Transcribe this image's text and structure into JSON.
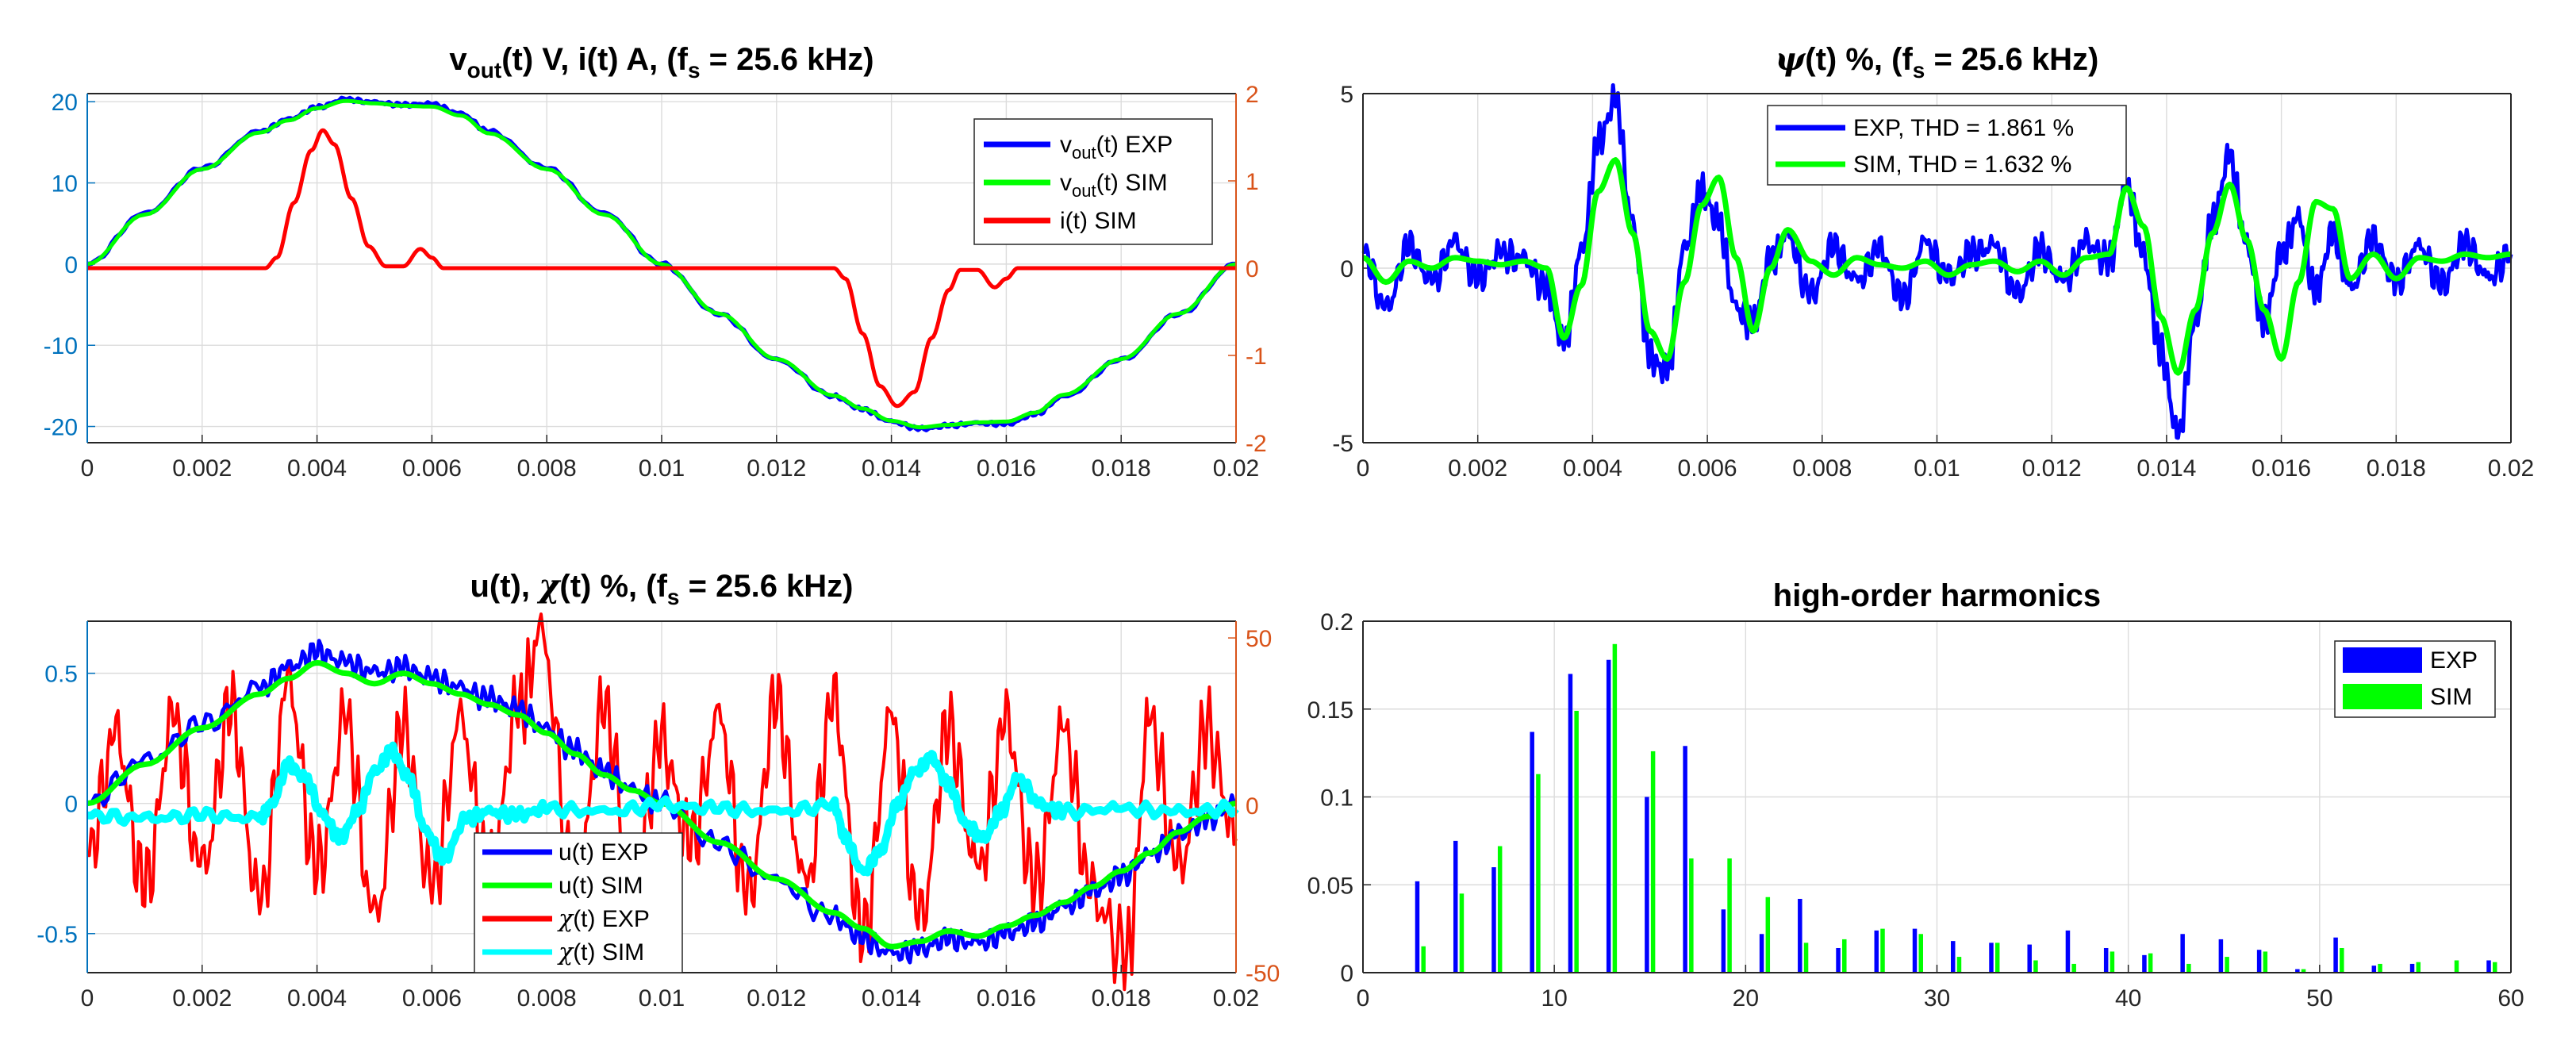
{
  "colors": {
    "exp": "#0000ff",
    "sim": "#00ff00",
    "red": "#ff0000",
    "cyan": "#00ffff",
    "axis_left": "#0072bd",
    "axis_right": "#d95319"
  },
  "chart_data": [
    {
      "id": "vout",
      "type": "line",
      "title": "v",
      "title_sub": "out",
      "title_rest": "(t) V, i(t) A, (f",
      "title_sub2": "s",
      "title_end": " = 25.6 kHz)",
      "xlim": [
        0,
        0.02
      ],
      "ylim": [
        -22,
        21
      ],
      "y2lim": [
        -2,
        2
      ],
      "xticks": [
        "0",
        "0.002",
        "0.004",
        "0.006",
        "0.008",
        "0.01",
        "0.012",
        "0.014",
        "0.016",
        "0.018",
        "0.02"
      ],
      "yticks": [
        "-20",
        "-10",
        "0",
        "10",
        "20"
      ],
      "y2ticks": [
        "-2",
        "-1",
        "0",
        "1",
        "2"
      ],
      "legend_position": "top-right",
      "legend": [
        {
          "pre": "v",
          "sub": "out",
          "post": "(t) EXP"
        },
        {
          "pre": "v",
          "sub": "out",
          "post": "(t) SIM"
        },
        {
          "pre": "i(t)  SIM",
          "sub": "",
          "post": ""
        }
      ],
      "series": [
        {
          "name": "vout(t) EXP",
          "axis": "left",
          "x": [
            0,
            0.001,
            0.002,
            0.003,
            0.0035,
            0.004,
            0.0045,
            0.005,
            0.0055,
            0.006,
            0.0065,
            0.007,
            0.008,
            0.009,
            0.01,
            0.011,
            0.012,
            0.013,
            0.0135,
            0.014,
            0.0145,
            0.015,
            0.0155,
            0.016,
            0.0165,
            0.017,
            0.018,
            0.019,
            0.02
          ],
          "values": [
            0,
            6.2,
            11.8,
            16.3,
            17.8,
            19.3,
            20.3,
            19.9,
            19.6,
            19.7,
            18.5,
            16.3,
            11.8,
            6.2,
            0,
            -6.2,
            -11.8,
            -16.3,
            -17.9,
            -19.4,
            -20.3,
            -19.9,
            -19.6,
            -19.7,
            -18.5,
            -16.3,
            -11.8,
            -6.2,
            0
          ]
        },
        {
          "name": "vout(t) SIM",
          "axis": "left",
          "x": [
            0,
            0.001,
            0.002,
            0.003,
            0.0035,
            0.004,
            0.0045,
            0.005,
            0.0055,
            0.006,
            0.0065,
            0.007,
            0.008,
            0.009,
            0.01,
            0.011,
            0.012,
            0.013,
            0.0135,
            0.014,
            0.0145,
            0.015,
            0.0155,
            0.016,
            0.0165,
            0.017,
            0.018,
            0.019,
            0.02
          ],
          "values": [
            0,
            6.1,
            11.7,
            16.2,
            17.7,
            19.2,
            20.1,
            19.8,
            19.5,
            19.4,
            18.3,
            16.1,
            11.7,
            6.1,
            0,
            -6.1,
            -11.7,
            -16.2,
            -17.8,
            -19.3,
            -20.1,
            -19.8,
            -19.5,
            -19.4,
            -18.3,
            -16.1,
            -11.7,
            -6.1,
            0
          ]
        },
        {
          "name": "i(t)  SIM",
          "axis": "right",
          "x": [
            0,
            0.0031,
            0.0033,
            0.0036,
            0.0039,
            0.0041,
            0.0043,
            0.0046,
            0.0049,
            0.0052,
            0.0055,
            0.0058,
            0.006,
            0.0062,
            0.013,
            0.0132,
            0.0135,
            0.0138,
            0.0141,
            0.0144,
            0.0147,
            0.015,
            0.0152,
            0.0155,
            0.0158,
            0.016,
            0.0162,
            0.02
          ],
          "values": [
            0,
            0,
            0.12,
            0.75,
            1.35,
            1.58,
            1.42,
            0.8,
            0.25,
            0.02,
            0.02,
            0.22,
            0.12,
            0,
            0,
            -0.12,
            -0.75,
            -1.35,
            -1.58,
            -1.42,
            -0.8,
            -0.25,
            -0.02,
            -0.02,
            -0.22,
            -0.12,
            0,
            0
          ]
        }
      ]
    },
    {
      "id": "psi",
      "type": "line",
      "title_symbol": "ψ",
      "title_rest": "(t) %, (f",
      "title_sub2": "s",
      "title_end": " = 25.6 kHz)",
      "xlim": [
        0,
        0.02
      ],
      "ylim": [
        -5,
        5
      ],
      "xticks": [
        "0",
        "0.002",
        "0.004",
        "0.006",
        "0.008",
        "0.01",
        "0.012",
        "0.014",
        "0.016",
        "0.018",
        "0.02"
      ],
      "yticks": [
        "-5",
        "0",
        "5"
      ],
      "legend_position": "top-center",
      "legend": [
        {
          "text": "EXP, THD = 1.861 %"
        },
        {
          "text": "SIM,  THD = 1.632 %"
        }
      ],
      "series": [
        {
          "name": "EXP, THD = 1.861 %",
          "x": [
            0,
            0.0004,
            0.0008,
            0.0012,
            0.0016,
            0.002,
            0.0024,
            0.0028,
            0.0032,
            0.0035,
            0.0038,
            0.0041,
            0.0044,
            0.0047,
            0.005,
            0.0053,
            0.0056,
            0.0059,
            0.0062,
            0.0065,
            0.0068,
            0.0071,
            0.0074,
            0.0078,
            0.0082,
            0.0086,
            0.009,
            0.0094,
            0.0098,
            0.0102,
            0.0106,
            0.011,
            0.0114,
            0.0118,
            0.0122,
            0.0126,
            0.013,
            0.0133,
            0.0136,
            0.0139,
            0.0142,
            0.0145,
            0.0148,
            0.0151,
            0.0154,
            0.0157,
            0.016,
            0.0163,
            0.0166,
            0.0169,
            0.0172,
            0.0176,
            0.018,
            0.0184,
            0.0188,
            0.0192,
            0.0196,
            0.02
          ],
          "values": [
            0.5,
            -1.2,
            0.6,
            -0.4,
            0.7,
            -0.3,
            0.4,
            0.2,
            -0.6,
            -2.2,
            0.4,
            3.6,
            4.8,
            1.2,
            -2.6,
            -3.0,
            0.5,
            2.2,
            1.3,
            -1.2,
            -1.6,
            0.2,
            0.9,
            -0.8,
            0.6,
            -0.4,
            0.5,
            -0.9,
            0.7,
            -0.3,
            0.4,
            0.6,
            -0.8,
            0.5,
            -0.4,
            0.7,
            0.2,
            2.4,
            0.3,
            -2.4,
            -4.8,
            -1.6,
            1.3,
            3.2,
            0.6,
            -1.6,
            0.4,
            1.4,
            -0.7,
            1.0,
            -0.6,
            0.8,
            -0.4,
            0.6,
            -0.5,
            0.7,
            -0.3,
            0.4
          ]
        },
        {
          "name": "SIM,  THD = 1.632 %",
          "x": [
            0,
            0.0004,
            0.0008,
            0.0012,
            0.0016,
            0.002,
            0.0024,
            0.0028,
            0.0032,
            0.0035,
            0.0038,
            0.0041,
            0.0044,
            0.0047,
            0.005,
            0.0053,
            0.0056,
            0.0059,
            0.0062,
            0.0065,
            0.0068,
            0.0071,
            0.0074,
            0.0078,
            0.0082,
            0.0086,
            0.009,
            0.0094,
            0.0098,
            0.0102,
            0.0106,
            0.011,
            0.0114,
            0.0118,
            0.0122,
            0.0126,
            0.013,
            0.0133,
            0.0136,
            0.0139,
            0.0142,
            0.0145,
            0.0148,
            0.0151,
            0.0154,
            0.0157,
            0.016,
            0.0163,
            0.0166,
            0.0169,
            0.0172,
            0.0176,
            0.018,
            0.0184,
            0.0188,
            0.0192,
            0.0196,
            0.02
          ],
          "values": [
            0.3,
            -0.4,
            0.2,
            0.0,
            0.3,
            0.2,
            0.1,
            0.2,
            0.0,
            -2.0,
            -0.5,
            2.2,
            3.1,
            1.0,
            -1.8,
            -2.6,
            -0.4,
            1.8,
            2.6,
            0.3,
            -1.8,
            0.0,
            1.1,
            0.2,
            -0.2,
            0.3,
            0.1,
            0.0,
            0.2,
            -0.2,
            0.1,
            0.2,
            -0.1,
            0.2,
            -0.2,
            0.3,
            0.4,
            2.3,
            1.2,
            -1.4,
            -3.0,
            -1.2,
            1.0,
            2.4,
            0.8,
            -1.2,
            -2.6,
            -0.4,
            1.9,
            1.7,
            -0.3,
            0.4,
            -0.3,
            0.3,
            0.2,
            0.4,
            0.3,
            0.4
          ]
        }
      ]
    },
    {
      "id": "u",
      "type": "line",
      "title": "u(t), ",
      "title_symbol": "χ",
      "title_rest": "(t) %, (f",
      "title_sub2": "s",
      "title_end": " = 25.6 kHz)",
      "xlim": [
        0,
        0.02
      ],
      "ylim": [
        -0.65,
        0.7
      ],
      "y2lim": [
        -50,
        55
      ],
      "xticks": [
        "0",
        "0.002",
        "0.004",
        "0.006",
        "0.008",
        "0.01",
        "0.012",
        "0.014",
        "0.016",
        "0.018",
        "0.02"
      ],
      "yticks": [
        "-0.5",
        "0",
        "0.5"
      ],
      "y2ticks": [
        "-50",
        "0",
        "50"
      ],
      "legend_position": "bottom-center",
      "legend": [
        {
          "pre": "u(t) EXP",
          "sym": ""
        },
        {
          "pre": "u(t) SIM",
          "sym": ""
        },
        {
          "pre": "(t) EXP",
          "sym": "χ"
        },
        {
          "pre": "(t) SIM",
          "sym": "χ"
        }
      ],
      "series": [
        {
          "name": "u(t) EXP",
          "axis": "left",
          "x": [
            0,
            0.001,
            0.002,
            0.003,
            0.0035,
            0.004,
            0.0045,
            0.005,
            0.0055,
            0.006,
            0.0065,
            0.007,
            0.0075,
            0.008,
            0.0085,
            0.009,
            0.0095,
            0.01,
            0.011,
            0.012,
            0.013,
            0.0135,
            0.014,
            0.0145,
            0.015,
            0.0155,
            0.016,
            0.0165,
            0.017,
            0.0175,
            0.018,
            0.0185,
            0.019,
            0.0195,
            0.02
          ],
          "values": [
            0,
            0.16,
            0.3,
            0.44,
            0.52,
            0.58,
            0.54,
            0.5,
            0.52,
            0.48,
            0.44,
            0.4,
            0.36,
            0.28,
            0.2,
            0.12,
            0.05,
            0,
            -0.16,
            -0.3,
            -0.44,
            -0.52,
            -0.58,
            -0.56,
            -0.52,
            -0.54,
            -0.5,
            -0.46,
            -0.4,
            -0.34,
            -0.28,
            -0.2,
            -0.12,
            -0.06,
            0
          ]
        },
        {
          "name": "u(t) SIM",
          "axis": "left",
          "x": [
            0,
            0.001,
            0.002,
            0.003,
            0.0035,
            0.004,
            0.0045,
            0.005,
            0.0055,
            0.006,
            0.0065,
            0.007,
            0.0075,
            0.008,
            0.0085,
            0.009,
            0.0095,
            0.01,
            0.011,
            0.012,
            0.013,
            0.0135,
            0.014,
            0.0145,
            0.015,
            0.0155,
            0.016,
            0.0165,
            0.017,
            0.0175,
            0.018,
            0.0185,
            0.019,
            0.0195,
            0.02
          ],
          "values": [
            0,
            0.15,
            0.29,
            0.42,
            0.48,
            0.54,
            0.5,
            0.46,
            0.5,
            0.46,
            0.42,
            0.38,
            0.34,
            0.27,
            0.19,
            0.11,
            0.05,
            0,
            -0.15,
            -0.29,
            -0.42,
            -0.48,
            -0.55,
            -0.53,
            -0.49,
            -0.51,
            -0.47,
            -0.43,
            -0.38,
            -0.32,
            -0.26,
            -0.19,
            -0.11,
            -0.05,
            0
          ]
        },
        {
          "name": "χ(t) EXP",
          "axis": "right",
          "x": [
            0,
            0.0005,
            0.001,
            0.0015,
            0.002,
            0.0025,
            0.003,
            0.0035,
            0.004,
            0.0045,
            0.005,
            0.0055,
            0.006,
            0.0065,
            0.007,
            0.0075,
            0.0079,
            0.0085,
            0.009,
            0.0095,
            0.01,
            0.0105,
            0.011,
            0.0115,
            0.012,
            0.0125,
            0.013,
            0.0135,
            0.014,
            0.0145,
            0.015,
            0.0155,
            0.016,
            0.0165,
            0.017,
            0.0175,
            0.0181,
            0.0185,
            0.019,
            0.0195,
            0.02
          ],
          "values": [
            -15,
            20,
            -25,
            25,
            -20,
            28,
            -30,
            35,
            -20,
            25,
            -35,
            22,
            -25,
            24,
            -22,
            28,
            50,
            -25,
            28,
            -22,
            18,
            -12,
            25,
            -28,
            30,
            -25,
            30,
            -40,
            25,
            -35,
            22,
            -20,
            24,
            -25,
            22,
            -28,
            -45,
            25,
            -20,
            22,
            -10
          ]
        },
        {
          "name": "χ(t) SIM",
          "axis": "right",
          "x": [
            0,
            0.001,
            0.002,
            0.003,
            0.0032,
            0.0035,
            0.0038,
            0.0041,
            0.0044,
            0.0047,
            0.005,
            0.0053,
            0.0056,
            0.0059,
            0.0062,
            0.0066,
            0.007,
            0.0075,
            0.008,
            0.009,
            0.01,
            0.011,
            0.012,
            0.013,
            0.0132,
            0.0135,
            0.0138,
            0.0141,
            0.0144,
            0.0147,
            0.015,
            0.0153,
            0.0156,
            0.0159,
            0.0162,
            0.0166,
            0.017,
            0.018,
            0.019,
            0.02
          ],
          "values": [
            -3,
            -4,
            -3,
            -4,
            0,
            12,
            8,
            -3,
            -10,
            -2,
            10,
            16,
            8,
            -8,
            -16,
            -4,
            -2,
            -3,
            -1,
            -2,
            0,
            -1,
            -2,
            0,
            -10,
            -20,
            -14,
            0,
            10,
            14,
            6,
            -6,
            -10,
            -2,
            8,
            0,
            -2,
            -1,
            -2,
            -1
          ]
        }
      ]
    },
    {
      "id": "harmonics",
      "type": "bar",
      "title": "high-order harmonics",
      "xlim": [
        0,
        60
      ],
      "ylim": [
        0,
        0.2
      ],
      "xticks": [
        "0",
        "10",
        "20",
        "30",
        "40",
        "50",
        "60"
      ],
      "yticks": [
        "0",
        "0.05",
        "0.1",
        "0.15",
        "0.2"
      ],
      "legend_position": "top-right",
      "legend": [
        {
          "text": "EXP"
        },
        {
          "text": "SIM"
        }
      ],
      "categories": [
        3,
        5,
        7,
        9,
        11,
        13,
        15,
        17,
        19,
        21,
        23,
        25,
        27,
        29,
        31,
        33,
        35,
        37,
        39,
        41,
        43,
        45,
        47,
        49,
        51,
        53,
        55,
        57,
        59
      ],
      "series": [
        {
          "name": "EXP",
          "values": [
            0.052,
            0.075,
            0.06,
            0.137,
            0.17,
            0.178,
            0.1,
            0.129,
            0.036,
            0.022,
            0.042,
            0.014,
            0.024,
            0.025,
            0.018,
            0.017,
            0.016,
            0.024,
            0.014,
            0.01,
            0.022,
            0.019,
            0.013,
            0.002,
            0.02,
            0.004,
            0.005,
            0.0,
            0.007
          ]
        },
        {
          "name": "SIM",
          "values": [
            0.015,
            0.045,
            0.072,
            0.113,
            0.149,
            0.187,
            0.126,
            0.065,
            0.065,
            0.043,
            0.017,
            0.019,
            0.025,
            0.022,
            0.009,
            0.017,
            0.007,
            0.005,
            0.012,
            0.011,
            0.005,
            0.009,
            0.012,
            0.002,
            0.014,
            0.005,
            0.006,
            0.007,
            0.006
          ]
        }
      ]
    }
  ]
}
